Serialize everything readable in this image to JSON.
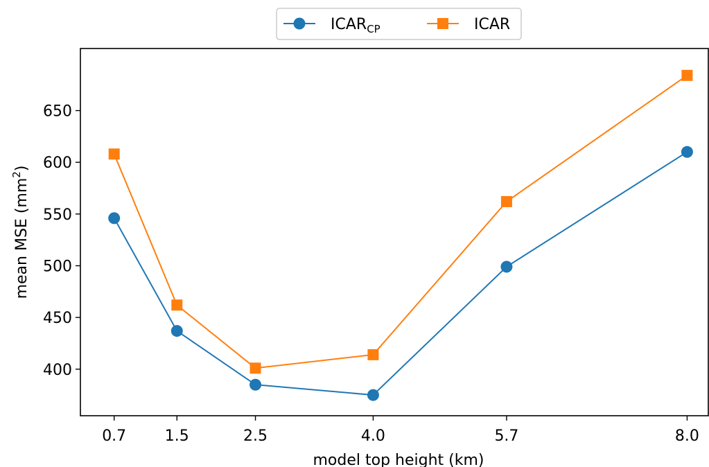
{
  "chart_data": {
    "type": "line",
    "xlabel": "model top height (km)",
    "ylabel": "mean MSE (mm",
    "ylabel_sup": "2",
    "ylabel_close": ")",
    "categories": [
      "0.7",
      "1.5",
      "2.5",
      "4.0",
      "5.7",
      "8.0"
    ],
    "x": [
      0.7,
      1.5,
      2.5,
      4.0,
      5.7,
      8.0
    ],
    "yticks": [
      "400",
      "450",
      "500",
      "550",
      "600",
      "650"
    ],
    "ylim": [
      355,
      710
    ],
    "xlim": [
      0.27,
      8.27
    ],
    "grid": false,
    "legend_position": "top-center",
    "series": [
      {
        "name": "ICAR",
        "name_sub": "CP",
        "color": "#1f77b4",
        "marker": "circle",
        "values": [
          546,
          437,
          385,
          375,
          499,
          610
        ]
      },
      {
        "name": "ICAR",
        "name_sub": "",
        "color": "#ff7f0e",
        "marker": "square",
        "values": [
          608,
          462,
          401,
          414,
          562,
          684
        ]
      }
    ]
  }
}
